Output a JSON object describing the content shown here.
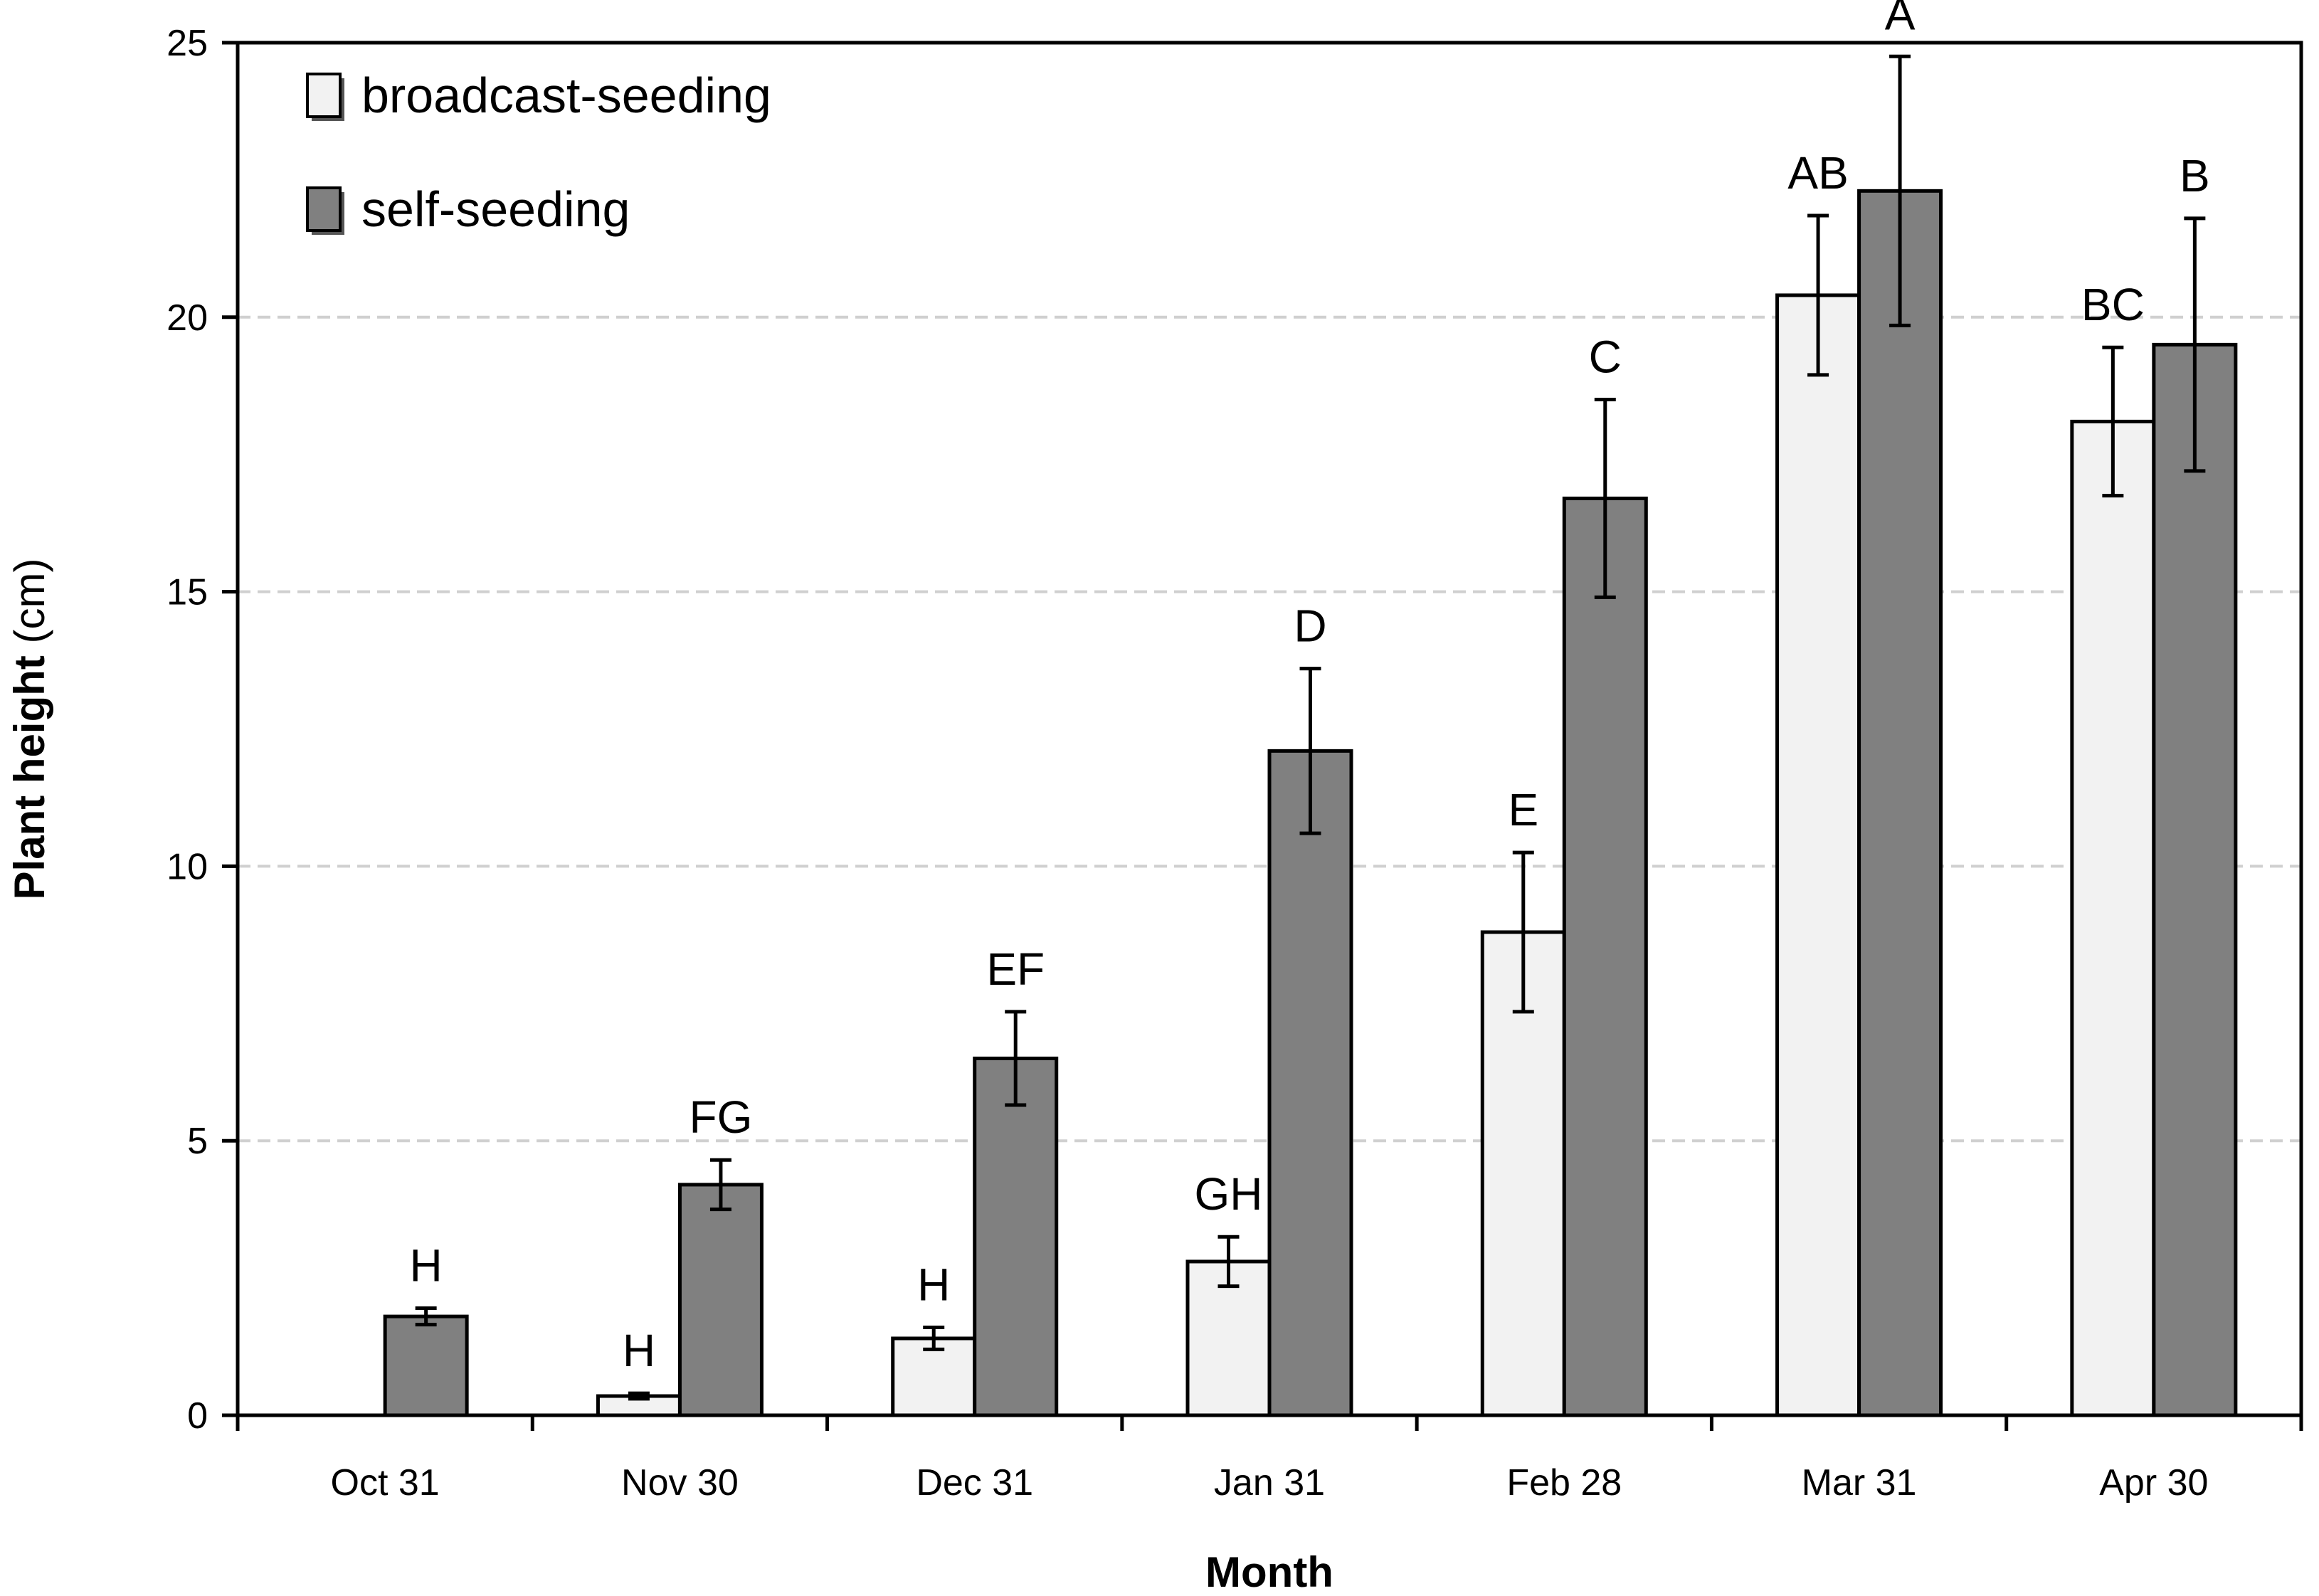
{
  "chart_data": {
    "type": "bar",
    "title": "",
    "xlabel": "Month",
    "ylabel": "Plant height",
    "ylabel_unit": " (cm)",
    "ylim": [
      0,
      25
    ],
    "yticks": [
      0,
      5,
      10,
      15,
      20,
      25
    ],
    "grid": "horizontal dashed",
    "legend_position": "top-left",
    "categories": [
      "Oct 31",
      "Nov 30",
      "Dec 31",
      "Jan 31",
      "Feb 28",
      "Mar 31",
      "Apr 30"
    ],
    "series": [
      {
        "name": "broadcast-seeding",
        "color": "#f2f2f2",
        "values": [
          null,
          0.35,
          1.4,
          2.8,
          8.8,
          20.4,
          18.1
        ],
        "errors": [
          null,
          0.05,
          0.2,
          0.45,
          1.45,
          1.45,
          1.35
        ],
        "labels": [
          "",
          "H",
          "H",
          "GH",
          "E",
          "AB",
          "BC"
        ]
      },
      {
        "name": "self-seeding",
        "color": "#808080",
        "values": [
          1.8,
          4.2,
          6.5,
          12.1,
          16.7,
          22.3,
          19.5
        ],
        "errors": [
          0.15,
          0.45,
          0.85,
          1.5,
          1.8,
          2.45,
          2.3
        ],
        "labels": [
          "H",
          "FG",
          "EF",
          "D",
          "C",
          "A",
          "B"
        ]
      }
    ]
  }
}
